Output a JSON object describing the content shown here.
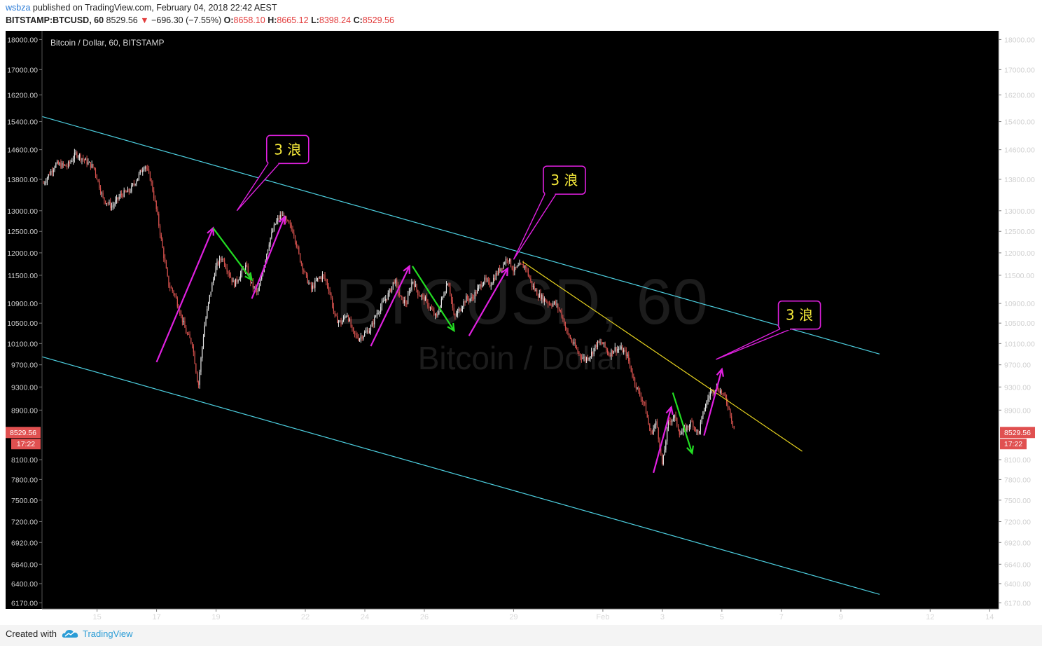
{
  "header": {
    "author": "wsbza",
    "published_text": "published on TradingView.com, February 04, 2018 22:42 AEST",
    "symbol": "BITSTAMP:BTCUSD, 60",
    "last": "8529.56",
    "change_arrow": "▼",
    "change": "−696.30 (−7.55%)",
    "open_label": "O:",
    "open": "8658.10",
    "high_label": "H:",
    "high": "8665.12",
    "low_label": "L:",
    "low": "8398.24",
    "close_label": "C:",
    "close": "8529.56"
  },
  "footer": {
    "created_with": "Created with",
    "brand": "TradingView",
    "logo_icon": "tradingview-cloud-icon"
  },
  "colors": {
    "background": "#000000",
    "channel": "#4dd0e1",
    "trendline": "#e6d21f",
    "impulse_arrow": "#e020e0",
    "correction_arrow": "#22dd22",
    "candle_up": "#e6e6e6",
    "candle_down": "#d9534f",
    "price_badge": "#e05050"
  },
  "chart_data": {
    "type": "candlestick",
    "title": "Bitcoin / Dollar, 60, BITSTAMP",
    "watermark_symbol": "BTCUSD, 60",
    "watermark_name": "Bitcoin / Dollar",
    "ylim": [
      6100,
      18300
    ],
    "y_scale": "log",
    "y_ticks": [
      "18000.00",
      "17000.00",
      "16200.00",
      "15400.00",
      "14600.00",
      "13800.00",
      "13000.00",
      "12500.00",
      "12000.00",
      "11500.00",
      "10900.00",
      "10500.00",
      "10100.00",
      "9700.00",
      "9300.00",
      "8900.00",
      "8100.00",
      "7800.00",
      "7500.00",
      "7200.00",
      "6920.00",
      "6640.00",
      "6400.00",
      "6170.00"
    ],
    "x_tick_labels": [
      "15",
      "17",
      "19",
      "22",
      "24",
      "26",
      "29",
      "Feb",
      "3",
      "5",
      "7",
      "9",
      "12",
      "14"
    ],
    "x_tick_days": [
      15,
      17,
      19,
      22,
      24,
      26,
      29,
      32,
      34,
      36,
      38,
      40,
      43,
      45
    ],
    "x_range_days": [
      13.15,
      45.3
    ],
    "last_price": "8529.56",
    "countdown": "17:22",
    "price_path": [
      [
        13.2,
        13700
      ],
      [
        13.6,
        14200
      ],
      [
        14.0,
        14150
      ],
      [
        14.3,
        14500
      ],
      [
        14.6,
        14300
      ],
      [
        14.9,
        14100
      ],
      [
        15.2,
        13300
      ],
      [
        15.5,
        13100
      ],
      [
        15.8,
        13400
      ],
      [
        16.1,
        13500
      ],
      [
        16.4,
        13900
      ],
      [
        16.6,
        14200
      ],
      [
        16.8,
        13800
      ],
      [
        17.0,
        13000
      ],
      [
        17.2,
        12100
      ],
      [
        17.4,
        11300
      ],
      [
        17.6,
        11100
      ],
      [
        17.8,
        10700
      ],
      [
        18.0,
        10300
      ],
      [
        18.2,
        10100
      ],
      [
        18.4,
        9300
      ],
      [
        18.6,
        10400
      ],
      [
        18.8,
        11100
      ],
      [
        19.0,
        11700
      ],
      [
        19.2,
        11900
      ],
      [
        19.4,
        11600
      ],
      [
        19.6,
        11300
      ],
      [
        19.8,
        11500
      ],
      [
        20.0,
        11700
      ],
      [
        20.2,
        11300
      ],
      [
        20.4,
        11100
      ],
      [
        20.6,
        11700
      ],
      [
        20.8,
        12300
      ],
      [
        21.0,
        12700
      ],
      [
        21.2,
        12900
      ],
      [
        21.4,
        12700
      ],
      [
        21.6,
        12500
      ],
      [
        21.8,
        11900
      ],
      [
        22.0,
        11500
      ],
      [
        22.2,
        11200
      ],
      [
        22.4,
        11400
      ],
      [
        22.6,
        11500
      ],
      [
        22.8,
        11200
      ],
      [
        23.0,
        10600
      ],
      [
        23.2,
        10500
      ],
      [
        23.4,
        10700
      ],
      [
        23.6,
        10300
      ],
      [
        23.8,
        10200
      ],
      [
        24.0,
        10300
      ],
      [
        24.2,
        10400
      ],
      [
        24.4,
        10700
      ],
      [
        24.6,
        10900
      ],
      [
        24.8,
        11100
      ],
      [
        25.0,
        11400
      ],
      [
        25.2,
        11000
      ],
      [
        25.4,
        10900
      ],
      [
        25.6,
        11400
      ],
      [
        25.8,
        11100
      ],
      [
        26.0,
        11000
      ],
      [
        26.2,
        10800
      ],
      [
        26.4,
        10600
      ],
      [
        26.6,
        11000
      ],
      [
        26.8,
        11400
      ],
      [
        27.0,
        10600
      ],
      [
        27.2,
        10800
      ],
      [
        27.4,
        11000
      ],
      [
        27.6,
        11000
      ],
      [
        27.8,
        11200
      ],
      [
        28.0,
        11400
      ],
      [
        28.2,
        11300
      ],
      [
        28.4,
        11500
      ],
      [
        28.6,
        11700
      ],
      [
        28.8,
        11900
      ],
      [
        29.0,
        11600
      ],
      [
        29.2,
        11700
      ],
      [
        29.4,
        11700
      ],
      [
        29.6,
        11300
      ],
      [
        29.8,
        11100
      ],
      [
        30.0,
        11000
      ],
      [
        30.2,
        10900
      ],
      [
        30.4,
        10900
      ],
      [
        30.6,
        10700
      ],
      [
        30.8,
        10300
      ],
      [
        31.0,
        10100
      ],
      [
        31.2,
        9900
      ],
      [
        31.4,
        9800
      ],
      [
        31.6,
        9900
      ],
      [
        31.8,
        10100
      ],
      [
        32.0,
        10100
      ],
      [
        32.2,
        9900
      ],
      [
        32.4,
        10000
      ],
      [
        32.6,
        10000
      ],
      [
        32.8,
        9900
      ],
      [
        33.0,
        9500
      ],
      [
        33.2,
        9200
      ],
      [
        33.4,
        9000
      ],
      [
        33.6,
        8500
      ],
      [
        33.8,
        8700
      ],
      [
        34.0,
        8000
      ],
      [
        34.2,
        8700
      ],
      [
        34.4,
        8800
      ],
      [
        34.6,
        8500
      ],
      [
        34.8,
        8600
      ],
      [
        35.0,
        8700
      ],
      [
        35.2,
        8500
      ],
      [
        35.4,
        8900
      ],
      [
        35.6,
        9200
      ],
      [
        35.8,
        9300
      ],
      [
        36.0,
        9200
      ],
      [
        36.2,
        9000
      ],
      [
        36.35,
        8700
      ],
      [
        36.45,
        8530
      ]
    ],
    "lines": [
      {
        "name": "upper-channel",
        "from": [
          13.15,
          15550
        ],
        "to": [
          41.3,
          9900
        ]
      },
      {
        "name": "lower-channel",
        "from": [
          13.15,
          9850
        ],
        "to": [
          41.3,
          6270
        ]
      },
      {
        "name": "yellow-trendline",
        "from": [
          29.3,
          11800
        ],
        "to": [
          38.7,
          8230
        ]
      }
    ],
    "impulse_arrows": [
      {
        "from": [
          17.0,
          9750
        ],
        "to": [
          18.9,
          12580
        ]
      },
      {
        "from": [
          20.2,
          11000
        ],
        "to": [
          21.3,
          12850
        ]
      },
      {
        "from": [
          24.2,
          10050
        ],
        "to": [
          25.5,
          11700
        ]
      },
      {
        "from": [
          27.5,
          10250
        ],
        "to": [
          28.8,
          11650
        ]
      },
      {
        "from": [
          33.7,
          7900
        ],
        "to": [
          34.3,
          8950
        ]
      },
      {
        "from": [
          35.4,
          8480
        ],
        "to": [
          36.0,
          9620
        ]
      }
    ],
    "correction_arrows": [
      {
        "from": [
          18.9,
          12580
        ],
        "to": [
          20.2,
          11400
        ]
      },
      {
        "from": [
          25.6,
          11700
        ],
        "to": [
          27.0,
          10350
        ]
      },
      {
        "from": [
          34.35,
          9200
        ],
        "to": [
          35.0,
          8200
        ]
      }
    ],
    "callouts": [
      {
        "text": "3 浪",
        "box_at": [
          20.7,
          15000
        ],
        "pointer": [
          19.7,
          13000
        ]
      },
      {
        "text": "3 浪",
        "box_at": [
          30.0,
          14150
        ],
        "pointer": [
          29.0,
          11850
        ]
      },
      {
        "text": "3 浪",
        "box_at": [
          37.9,
          10950
        ],
        "pointer": [
          35.8,
          9800
        ]
      }
    ]
  }
}
